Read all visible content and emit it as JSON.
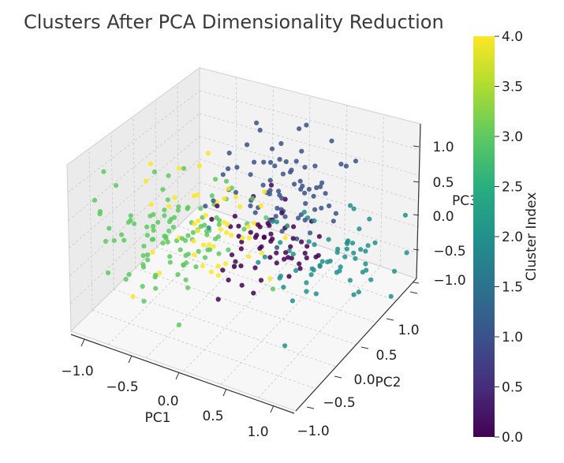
{
  "chart_data": {
    "type": "scatter",
    "projection": "3d",
    "title": "Clusters After PCA Dimensionality Reduction",
    "xlabel": "PC1",
    "ylabel": "PC2",
    "zlabel": "PC3",
    "xlim": [
      -1.3,
      1.3
    ],
    "ylim": [
      -1.3,
      1.3
    ],
    "zlim": [
      -1.2,
      1.3
    ],
    "xticks": [
      "−1.0",
      "−0.5",
      "0.0",
      "0.5",
      "1.0"
    ],
    "yticks": [
      "−1.0",
      "−0.5",
      "0.0",
      "0.5",
      "1.0"
    ],
    "zticks": [
      "−1.0",
      "−0.5",
      "0.0",
      "0.5",
      "1.0"
    ],
    "grid": true,
    "colormap": "viridis",
    "colorbar": {
      "label": "Cluster Index",
      "range": [
        0.0,
        4.0
      ],
      "ticks": [
        "0.0",
        "0.5",
        "1.0",
        "1.5",
        "2.0",
        "2.5",
        "3.0",
        "3.5",
        "4.0"
      ]
    },
    "clusters": [
      {
        "index": 0,
        "color": "#440154",
        "center": [
          0.1,
          0.2,
          -0.2
        ],
        "spread": 0.3,
        "count": 60
      },
      {
        "index": 1,
        "color": "#3b528b",
        "center": [
          0.0,
          0.8,
          0.3
        ],
        "spread": 0.35,
        "count": 75
      },
      {
        "index": 2,
        "color": "#21918c",
        "center": [
          0.9,
          0.3,
          -0.2
        ],
        "spread": 0.35,
        "count": 65
      },
      {
        "index": 3,
        "color": "#5ec962",
        "center": [
          -0.8,
          -0.2,
          -0.1
        ],
        "spread": 0.4,
        "count": 110
      },
      {
        "index": 4,
        "color": "#fde725",
        "center": [
          -0.3,
          0.0,
          0.2
        ],
        "spread": 0.35,
        "count": 50
      }
    ]
  }
}
